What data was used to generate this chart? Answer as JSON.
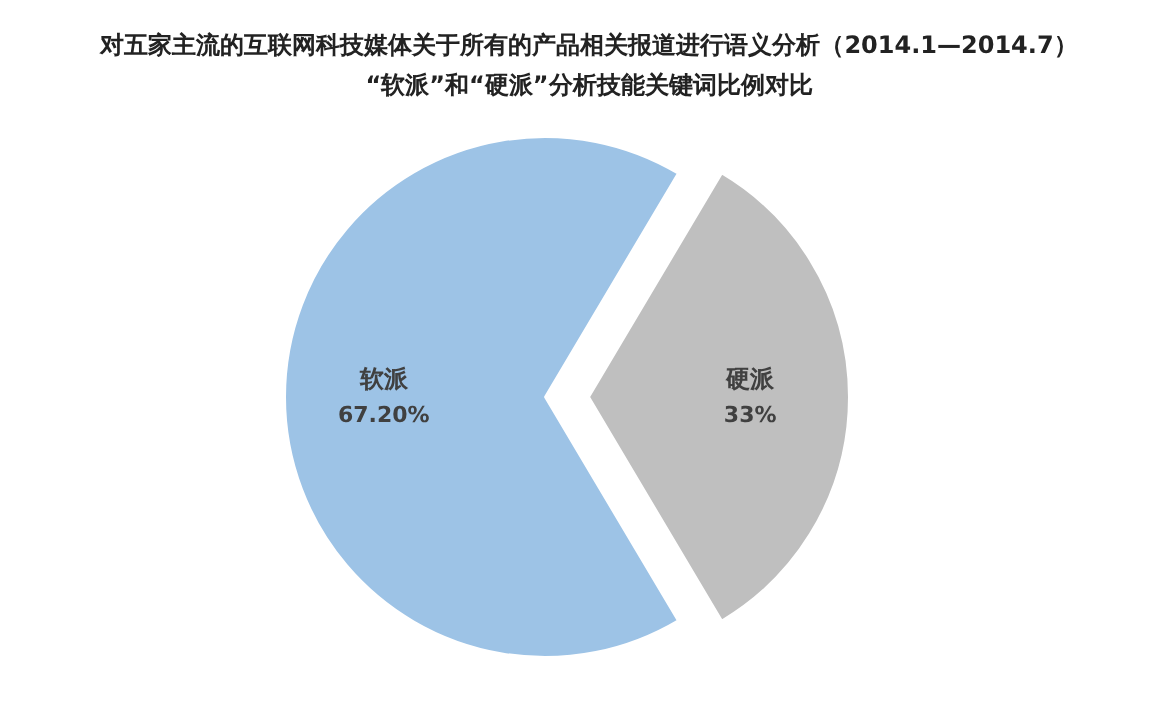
{
  "chart_data": {
    "type": "pie",
    "title": "对五家主流的互联网科技媒体关于所有的产品相关报道进行语义分析（2014.1—2014.7）",
    "subtitle": "“软派”和“硬派”分析技能关键词比例对比",
    "categories": [
      "软派",
      "硬派"
    ],
    "values": [
      67.2,
      33
    ],
    "colors": [
      "#9dc3e6",
      "#bfbfbf"
    ],
    "value_labels": [
      "67.20%",
      "33%"
    ]
  }
}
